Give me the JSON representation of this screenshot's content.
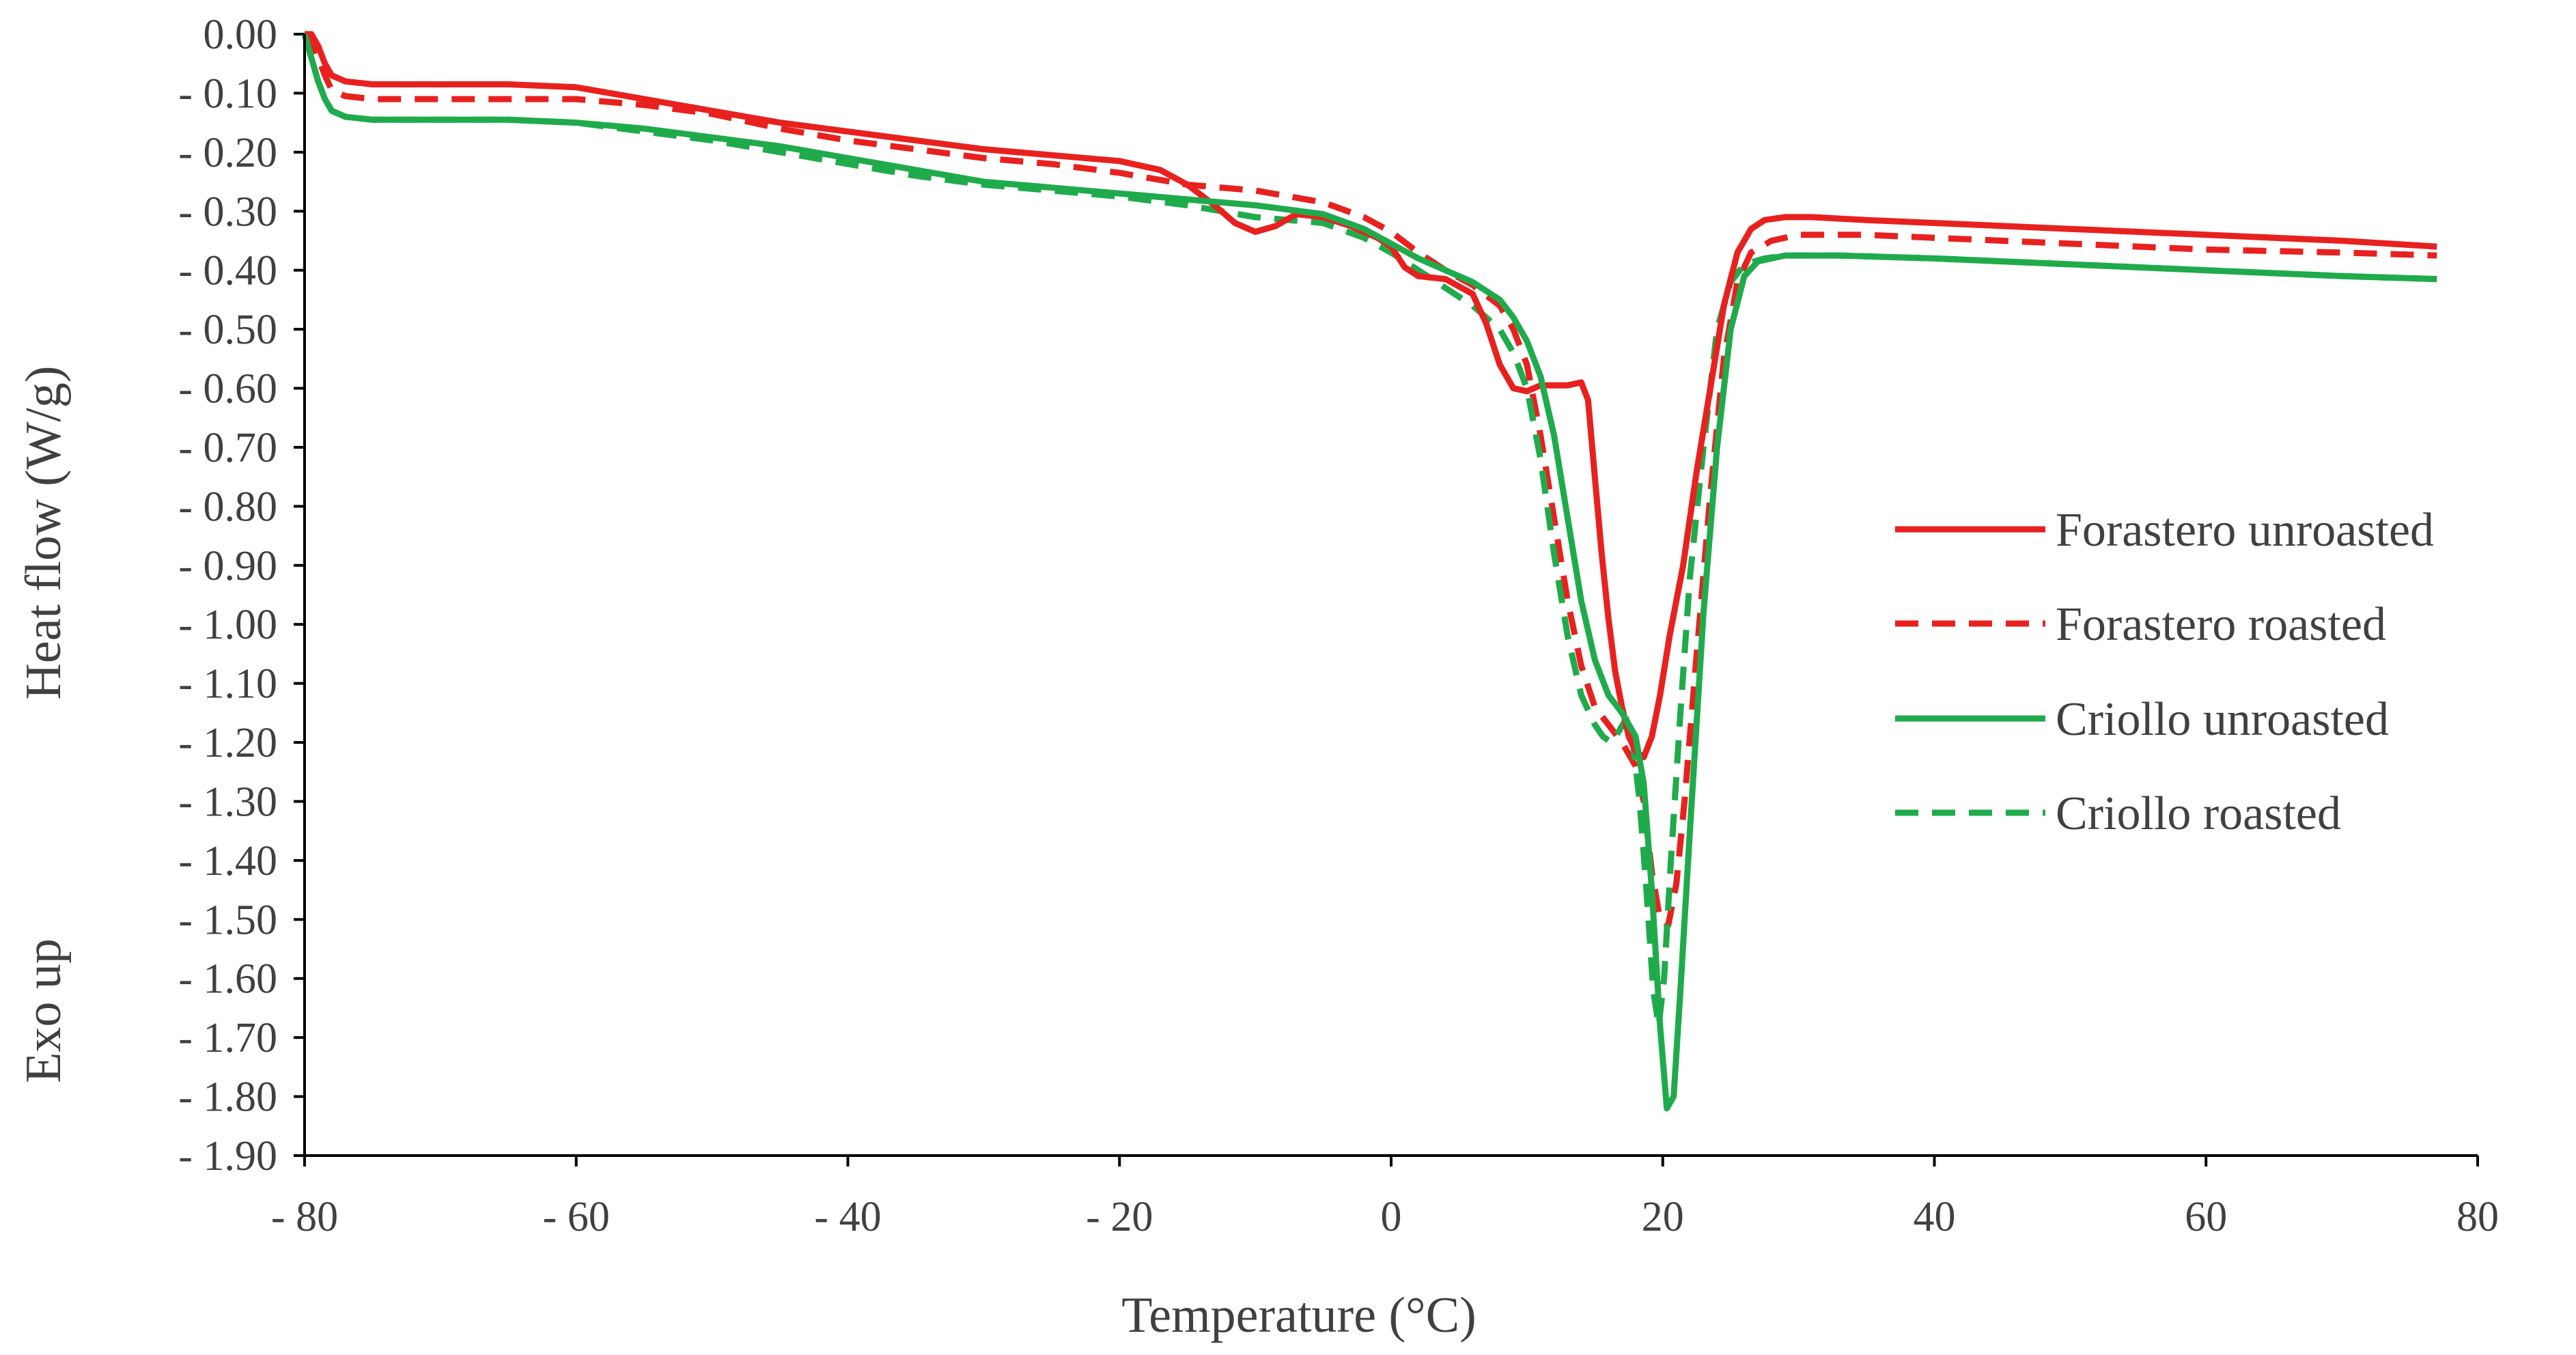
{
  "chart_data": {
    "type": "line",
    "title": "",
    "xlabel": "Temperature (°C)",
    "ylabel": "Heat flow (W/g)",
    "annotation": "Exo up",
    "xlim": [
      -80,
      80
    ],
    "ylim": [
      -1.9,
      0
    ],
    "x_ticks": [
      -80,
      -60,
      -40,
      -20,
      0,
      20,
      40,
      60,
      80
    ],
    "x_tick_labels": [
      "- 80",
      "- 60",
      "- 40",
      "- 20",
      "0",
      "20",
      "40",
      "60",
      "80"
    ],
    "y_ticks": [
      0,
      -0.1,
      -0.2,
      -0.3,
      -0.4,
      -0.5,
      -0.6,
      -0.7,
      -0.8,
      -0.9,
      -1.0,
      -1.1,
      -1.2,
      -1.3,
      -1.4,
      -1.5,
      -1.6,
      -1.7,
      -1.8,
      -1.9
    ],
    "y_tick_labels": [
      "0.00",
      "- 0.10",
      "- 0.20",
      "- 0.30",
      "- 0.40",
      "- 0.50",
      "- 0.60",
      "- 0.70",
      "- 0.80",
      "- 0.90",
      "- 1.00",
      "- 1.10",
      "- 1.20",
      "- 1.30",
      "- 1.40",
      "- 1.50",
      "- 1.60",
      "- 1.70",
      "- 1.80",
      "- 1.90"
    ],
    "grid": false,
    "legend_position": "right",
    "series": [
      {
        "name": "Forastero unroasted",
        "color": "#e8211f",
        "dash": "solid",
        "points": [
          [
            -80,
            0
          ],
          [
            -79.5,
            0
          ],
          [
            -79,
            -0.02
          ],
          [
            -78.5,
            -0.05
          ],
          [
            -78,
            -0.07
          ],
          [
            -77,
            -0.08
          ],
          [
            -75,
            -0.085
          ],
          [
            -70,
            -0.085
          ],
          [
            -65,
            -0.085
          ],
          [
            -60,
            -0.09
          ],
          [
            -55,
            -0.11
          ],
          [
            -50,
            -0.13
          ],
          [
            -45,
            -0.15
          ],
          [
            -40,
            -0.165
          ],
          [
            -35,
            -0.18
          ],
          [
            -30,
            -0.195
          ],
          [
            -25,
            -0.205
          ],
          [
            -20,
            -0.215
          ],
          [
            -17,
            -0.23
          ],
          [
            -15,
            -0.255
          ],
          [
            -13,
            -0.29
          ],
          [
            -11.5,
            -0.32
          ],
          [
            -10,
            -0.335
          ],
          [
            -8.5,
            -0.325
          ],
          [
            -7,
            -0.305
          ],
          [
            -5,
            -0.31
          ],
          [
            -3,
            -0.325
          ],
          [
            -1,
            -0.345
          ],
          [
            0,
            -0.36
          ],
          [
            1,
            -0.395
          ],
          [
            2,
            -0.41
          ],
          [
            4,
            -0.415
          ],
          [
            6,
            -0.44
          ],
          [
            7,
            -0.49
          ],
          [
            8,
            -0.56
          ],
          [
            9,
            -0.6
          ],
          [
            10,
            -0.605
          ],
          [
            11,
            -0.595
          ],
          [
            12,
            -0.595
          ],
          [
            13,
            -0.595
          ],
          [
            14,
            -0.59
          ],
          [
            14.5,
            -0.62
          ],
          [
            15,
            -0.75
          ],
          [
            15.5,
            -0.88
          ],
          [
            16,
            -0.99
          ],
          [
            16.5,
            -1.08
          ],
          [
            17,
            -1.14
          ],
          [
            17.5,
            -1.19
          ],
          [
            18,
            -1.215
          ],
          [
            18.6,
            -1.225
          ],
          [
            19.2,
            -1.19
          ],
          [
            19.8,
            -1.12
          ],
          [
            20.5,
            -1.02
          ],
          [
            21.5,
            -0.9
          ],
          [
            22.5,
            -0.74
          ],
          [
            23.5,
            -0.6
          ],
          [
            24.5,
            -0.46
          ],
          [
            25.5,
            -0.37
          ],
          [
            26.5,
            -0.33
          ],
          [
            27.5,
            -0.315
          ],
          [
            29,
            -0.31
          ],
          [
            31,
            -0.31
          ],
          [
            35,
            -0.315
          ],
          [
            40,
            -0.32
          ],
          [
            50,
            -0.33
          ],
          [
            60,
            -0.34
          ],
          [
            70,
            -0.35
          ],
          [
            77,
            -0.36
          ]
        ]
      },
      {
        "name": "Forastero roasted",
        "color": "#e8211f",
        "dash": "dashed",
        "points": [
          [
            -80,
            0
          ],
          [
            -79.5,
            -0.01
          ],
          [
            -79,
            -0.04
          ],
          [
            -78.5,
            -0.07
          ],
          [
            -78,
            -0.095
          ],
          [
            -77,
            -0.105
          ],
          [
            -75,
            -0.11
          ],
          [
            -70,
            -0.11
          ],
          [
            -65,
            -0.11
          ],
          [
            -60,
            -0.11
          ],
          [
            -55,
            -0.12
          ],
          [
            -50,
            -0.135
          ],
          [
            -45,
            -0.16
          ],
          [
            -40,
            -0.18
          ],
          [
            -35,
            -0.195
          ],
          [
            -30,
            -0.21
          ],
          [
            -25,
            -0.22
          ],
          [
            -20,
            -0.235
          ],
          [
            -15,
            -0.255
          ],
          [
            -10,
            -0.265
          ],
          [
            -5,
            -0.285
          ],
          [
            -2,
            -0.31
          ],
          [
            0,
            -0.335
          ],
          [
            2,
            -0.37
          ],
          [
            4,
            -0.4
          ],
          [
            6,
            -0.425
          ],
          [
            8,
            -0.46
          ],
          [
            9,
            -0.5
          ],
          [
            10,
            -0.56
          ],
          [
            11,
            -0.68
          ],
          [
            12,
            -0.82
          ],
          [
            13,
            -0.96
          ],
          [
            14,
            -1.07
          ],
          [
            15,
            -1.14
          ],
          [
            16,
            -1.17
          ],
          [
            17,
            -1.2
          ],
          [
            18,
            -1.24
          ],
          [
            18.6,
            -1.3
          ],
          [
            19.2,
            -1.42
          ],
          [
            19.8,
            -1.5
          ],
          [
            20.4,
            -1.51
          ],
          [
            21,
            -1.44
          ],
          [
            21.6,
            -1.3
          ],
          [
            22.5,
            -1.05
          ],
          [
            23.5,
            -0.78
          ],
          [
            24.5,
            -0.55
          ],
          [
            25.5,
            -0.42
          ],
          [
            26.5,
            -0.37
          ],
          [
            28,
            -0.35
          ],
          [
            30,
            -0.34
          ],
          [
            35,
            -0.34
          ],
          [
            40,
            -0.345
          ],
          [
            50,
            -0.355
          ],
          [
            60,
            -0.365
          ],
          [
            70,
            -0.37
          ],
          [
            77,
            -0.375
          ]
        ]
      },
      {
        "name": "Criollo unroasted",
        "color": "#1fab4c",
        "dash": "solid",
        "points": [
          [
            -80,
            0
          ],
          [
            -79.5,
            -0.04
          ],
          [
            -79,
            -0.08
          ],
          [
            -78.5,
            -0.11
          ],
          [
            -78,
            -0.13
          ],
          [
            -77,
            -0.14
          ],
          [
            -75,
            -0.145
          ],
          [
            -70,
            -0.145
          ],
          [
            -65,
            -0.145
          ],
          [
            -60,
            -0.15
          ],
          [
            -55,
            -0.16
          ],
          [
            -50,
            -0.175
          ],
          [
            -45,
            -0.19
          ],
          [
            -40,
            -0.21
          ],
          [
            -35,
            -0.23
          ],
          [
            -30,
            -0.25
          ],
          [
            -25,
            -0.26
          ],
          [
            -20,
            -0.27
          ],
          [
            -15,
            -0.28
          ],
          [
            -10,
            -0.29
          ],
          [
            -5,
            -0.305
          ],
          [
            -2,
            -0.33
          ],
          [
            0,
            -0.355
          ],
          [
            2,
            -0.38
          ],
          [
            4,
            -0.4
          ],
          [
            6,
            -0.42
          ],
          [
            8,
            -0.45
          ],
          [
            9,
            -0.48
          ],
          [
            10,
            -0.52
          ],
          [
            11,
            -0.58
          ],
          [
            12,
            -0.68
          ],
          [
            13,
            -0.82
          ],
          [
            14,
            -0.96
          ],
          [
            15,
            -1.06
          ],
          [
            16,
            -1.12
          ],
          [
            17,
            -1.15
          ],
          [
            18,
            -1.19
          ],
          [
            18.6,
            -1.27
          ],
          [
            19.2,
            -1.45
          ],
          [
            19.8,
            -1.68
          ],
          [
            20.3,
            -1.82
          ],
          [
            20.8,
            -1.8
          ],
          [
            21.3,
            -1.62
          ],
          [
            22,
            -1.35
          ],
          [
            23,
            -0.98
          ],
          [
            24,
            -0.7
          ],
          [
            25,
            -0.5
          ],
          [
            26,
            -0.41
          ],
          [
            27,
            -0.385
          ],
          [
            29,
            -0.375
          ],
          [
            33,
            -0.375
          ],
          [
            40,
            -0.38
          ],
          [
            50,
            -0.39
          ],
          [
            60,
            -0.4
          ],
          [
            70,
            -0.41
          ],
          [
            77,
            -0.415
          ]
        ]
      },
      {
        "name": "Criollo roasted",
        "color": "#1fab4c",
        "dash": "dashed",
        "points": [
          [
            -80,
            0
          ],
          [
            -79.5,
            -0.04
          ],
          [
            -79,
            -0.08
          ],
          [
            -78.5,
            -0.11
          ],
          [
            -78,
            -0.13
          ],
          [
            -77,
            -0.14
          ],
          [
            -75,
            -0.145
          ],
          [
            -70,
            -0.145
          ],
          [
            -65,
            -0.145
          ],
          [
            -60,
            -0.15
          ],
          [
            -55,
            -0.165
          ],
          [
            -50,
            -0.18
          ],
          [
            -45,
            -0.2
          ],
          [
            -40,
            -0.22
          ],
          [
            -35,
            -0.24
          ],
          [
            -30,
            -0.255
          ],
          [
            -25,
            -0.265
          ],
          [
            -20,
            -0.275
          ],
          [
            -15,
            -0.29
          ],
          [
            -10,
            -0.31
          ],
          [
            -5,
            -0.32
          ],
          [
            -2,
            -0.345
          ],
          [
            0,
            -0.37
          ],
          [
            2,
            -0.4
          ],
          [
            4,
            -0.43
          ],
          [
            6,
            -0.46
          ],
          [
            8,
            -0.5
          ],
          [
            9,
            -0.54
          ],
          [
            10,
            -0.6
          ],
          [
            11,
            -0.72
          ],
          [
            12,
            -0.88
          ],
          [
            13,
            -1.02
          ],
          [
            14,
            -1.12
          ],
          [
            15,
            -1.17
          ],
          [
            15.6,
            -1.19
          ],
          [
            16.2,
            -1.2
          ],
          [
            16.8,
            -1.18
          ],
          [
            17.3,
            -1.16
          ],
          [
            17.8,
            -1.2
          ],
          [
            18.3,
            -1.3
          ],
          [
            18.8,
            -1.45
          ],
          [
            19.3,
            -1.62
          ],
          [
            19.7,
            -1.68
          ],
          [
            20.1,
            -1.6
          ],
          [
            20.6,
            -1.4
          ],
          [
            21.3,
            -1.15
          ],
          [
            22,
            -0.92
          ],
          [
            23,
            -0.7
          ],
          [
            24,
            -0.5
          ],
          [
            25,
            -0.42
          ],
          [
            26,
            -0.39
          ],
          [
            27.5,
            -0.38
          ],
          [
            29,
            -0.375
          ],
          [
            33,
            -0.375
          ],
          [
            40,
            -0.38
          ],
          [
            50,
            -0.39
          ],
          [
            60,
            -0.4
          ],
          [
            70,
            -0.41
          ],
          [
            77,
            -0.415
          ]
        ]
      }
    ]
  }
}
